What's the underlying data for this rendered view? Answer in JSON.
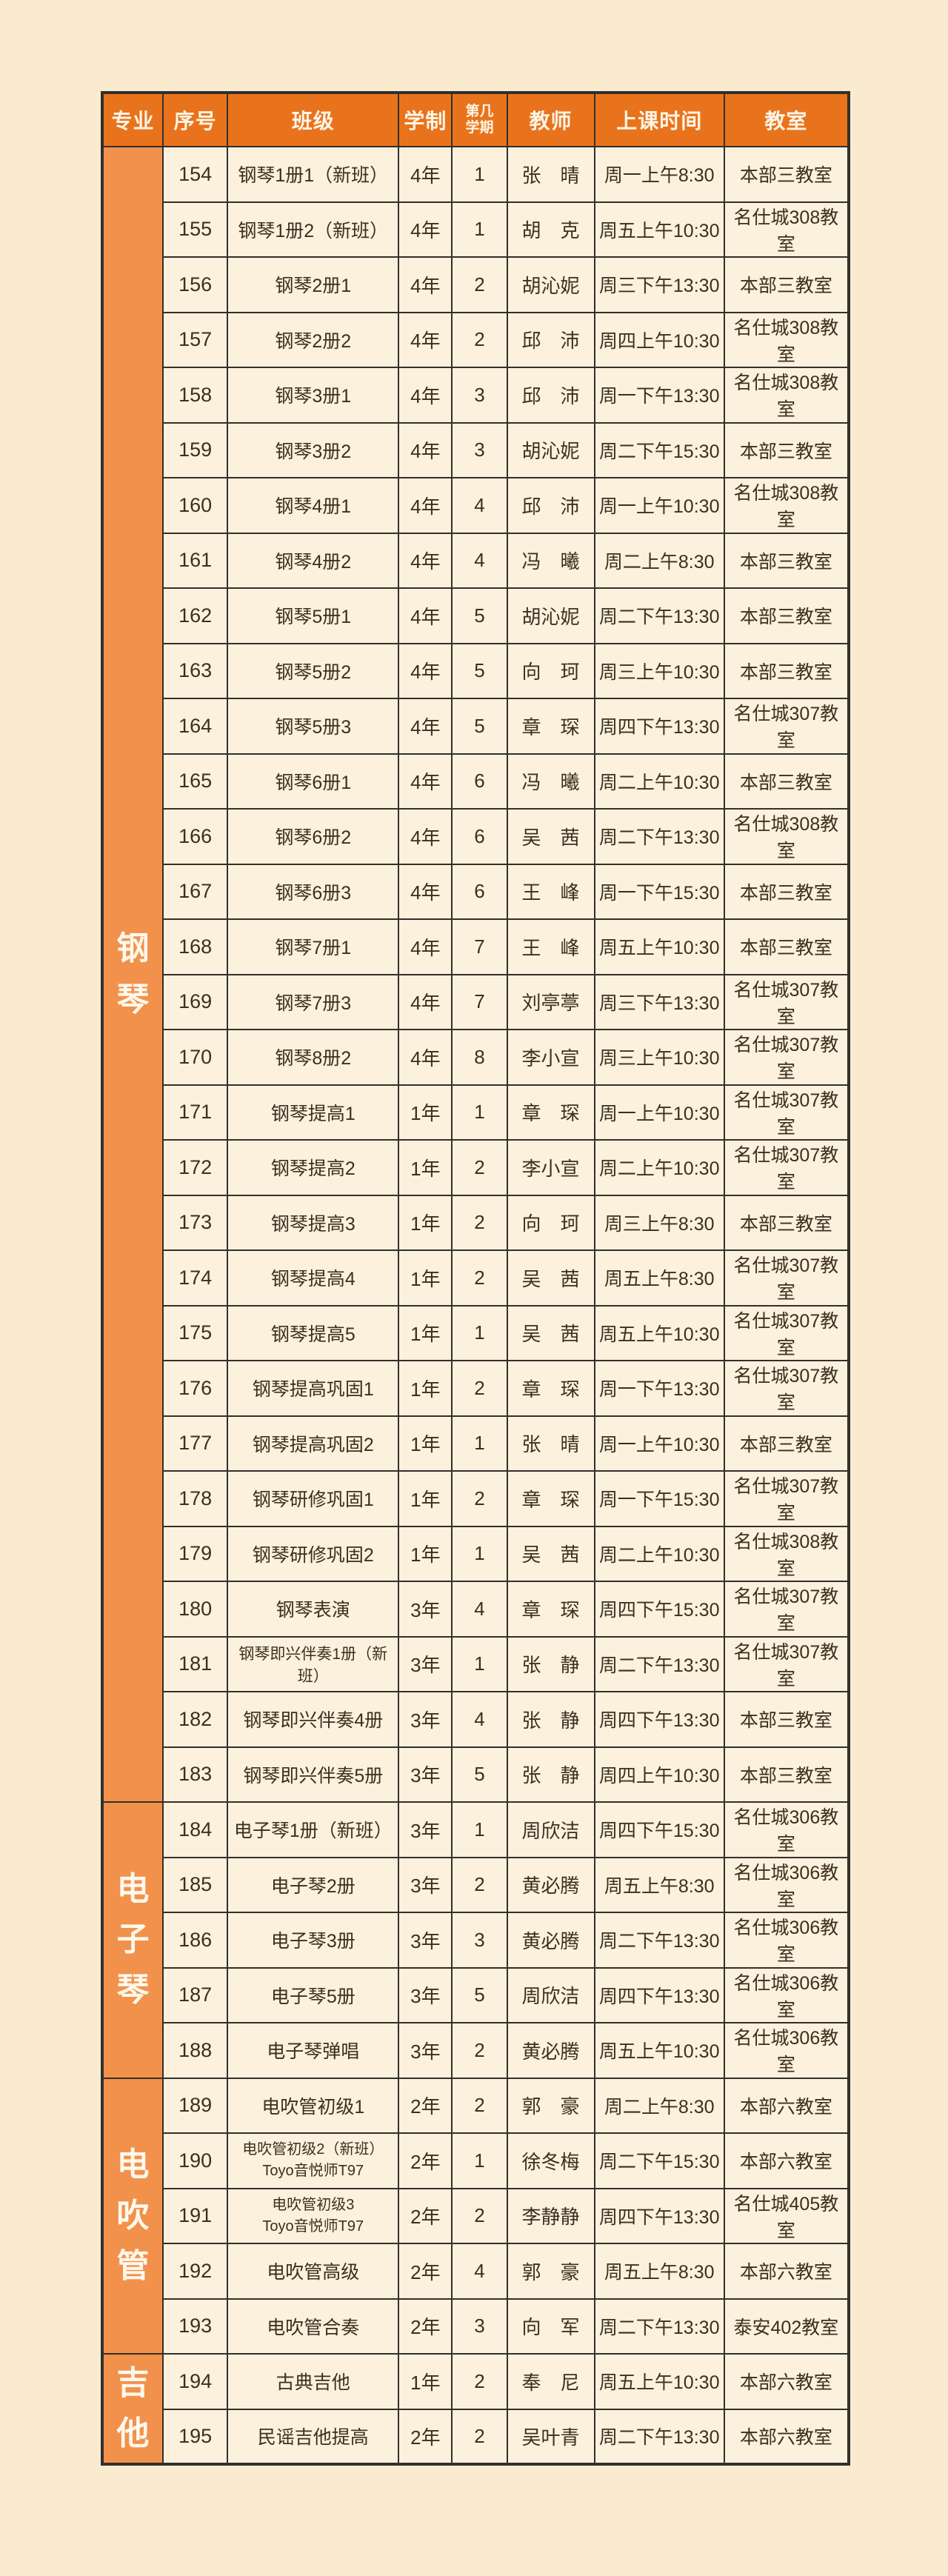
{
  "colors": {
    "page_background": "#FAEBD0",
    "header_background": "#E9731D",
    "section_background": "#F2914C",
    "cell_background": "#FCF1DC",
    "border": "#32302B",
    "body_text": "#3B2F1F",
    "header_text": "#FCF5E6"
  },
  "table": {
    "columns": [
      {
        "key": "major",
        "label": "专业"
      },
      {
        "key": "no",
        "label": "序号"
      },
      {
        "key": "class",
        "label": "班级"
      },
      {
        "key": "duration",
        "label": "学制"
      },
      {
        "key": "semester",
        "label": "第几\n学期"
      },
      {
        "key": "teacher",
        "label": "教师"
      },
      {
        "key": "time",
        "label": "上课时间"
      },
      {
        "key": "room",
        "label": "教室"
      }
    ],
    "sections": [
      {
        "major": "钢琴",
        "rows": [
          [
            "154",
            "钢琴1册1（新班）",
            "4年",
            "1",
            "张　晴",
            "周一上午8:30",
            "本部三教室"
          ],
          [
            "155",
            "钢琴1册2（新班）",
            "4年",
            "1",
            "胡　克",
            "周五上午10:30",
            "名仕城308教室"
          ],
          [
            "156",
            "钢琴2册1",
            "4年",
            "2",
            "胡沁妮",
            "周三下午13:30",
            "本部三教室"
          ],
          [
            "157",
            "钢琴2册2",
            "4年",
            "2",
            "邱　沛",
            "周四上午10:30",
            "名仕城308教室"
          ],
          [
            "158",
            "钢琴3册1",
            "4年",
            "3",
            "邱　沛",
            "周一下午13:30",
            "名仕城308教室"
          ],
          [
            "159",
            "钢琴3册2",
            "4年",
            "3",
            "胡沁妮",
            "周二下午15:30",
            "本部三教室"
          ],
          [
            "160",
            "钢琴4册1",
            "4年",
            "4",
            "邱　沛",
            "周一上午10:30",
            "名仕城308教室"
          ],
          [
            "161",
            "钢琴4册2",
            "4年",
            "4",
            "冯　曦",
            "周二上午8:30",
            "本部三教室"
          ],
          [
            "162",
            "钢琴5册1",
            "4年",
            "5",
            "胡沁妮",
            "周二下午13:30",
            "本部三教室"
          ],
          [
            "163",
            "钢琴5册2",
            "4年",
            "5",
            "向　珂",
            "周三上午10:30",
            "本部三教室"
          ],
          [
            "164",
            "钢琴5册3",
            "4年",
            "5",
            "章　琛",
            "周四下午13:30",
            "名仕城307教室"
          ],
          [
            "165",
            "钢琴6册1",
            "4年",
            "6",
            "冯　曦",
            "周二上午10:30",
            "本部三教室"
          ],
          [
            "166",
            "钢琴6册2",
            "4年",
            "6",
            "吴　茜",
            "周二下午13:30",
            "名仕城308教室"
          ],
          [
            "167",
            "钢琴6册3",
            "4年",
            "6",
            "王　峰",
            "周一下午15:30",
            "本部三教室"
          ],
          [
            "168",
            "钢琴7册1",
            "4年",
            "7",
            "王　峰",
            "周五上午10:30",
            "本部三教室"
          ],
          [
            "169",
            "钢琴7册3",
            "4年",
            "7",
            "刘亭葶",
            "周三下午13:30",
            "名仕城307教室"
          ],
          [
            "170",
            "钢琴8册2",
            "4年",
            "8",
            "李小宣",
            "周三上午10:30",
            "名仕城307教室"
          ],
          [
            "171",
            "钢琴提高1",
            "1年",
            "1",
            "章　琛",
            "周一上午10:30",
            "名仕城307教室"
          ],
          [
            "172",
            "钢琴提高2",
            "1年",
            "2",
            "李小宣",
            "周二上午10:30",
            "名仕城307教室"
          ],
          [
            "173",
            "钢琴提高3",
            "1年",
            "2",
            "向　珂",
            "周三上午8:30",
            "本部三教室"
          ],
          [
            "174",
            "钢琴提高4",
            "1年",
            "2",
            "吴　茜",
            "周五上午8:30",
            "名仕城307教室"
          ],
          [
            "175",
            "钢琴提高5",
            "1年",
            "1",
            "吴　茜",
            "周五上午10:30",
            "名仕城307教室"
          ],
          [
            "176",
            "钢琴提高巩固1",
            "1年",
            "2",
            "章　琛",
            "周一下午13:30",
            "名仕城307教室"
          ],
          [
            "177",
            "钢琴提高巩固2",
            "1年",
            "1",
            "张　晴",
            "周一上午10:30",
            "本部三教室"
          ],
          [
            "178",
            "钢琴研修巩固1",
            "1年",
            "2",
            "章　琛",
            "周一下午15:30",
            "名仕城307教室"
          ],
          [
            "179",
            "钢琴研修巩固2",
            "1年",
            "1",
            "吴　茜",
            "周二上午10:30",
            "名仕城308教室"
          ],
          [
            "180",
            "钢琴表演",
            "3年",
            "4",
            "章　琛",
            "周四下午15:30",
            "名仕城307教室"
          ],
          [
            "181",
            "钢琴即兴伴奏1册（新班）",
            "3年",
            "1",
            "张　静",
            "周二下午13:30",
            "名仕城307教室"
          ],
          [
            "182",
            "钢琴即兴伴奏4册",
            "3年",
            "4",
            "张　静",
            "周四下午13:30",
            "本部三教室"
          ],
          [
            "183",
            "钢琴即兴伴奏5册",
            "3年",
            "5",
            "张　静",
            "周四上午10:30",
            "本部三教室"
          ]
        ]
      },
      {
        "major": "电子琴",
        "rows": [
          [
            "184",
            "电子琴1册（新班）",
            "3年",
            "1",
            "周欣洁",
            "周四下午15:30",
            "名仕城306教室"
          ],
          [
            "185",
            "电子琴2册",
            "3年",
            "2",
            "黄必腾",
            "周五上午8:30",
            "名仕城306教室"
          ],
          [
            "186",
            "电子琴3册",
            "3年",
            "3",
            "黄必腾",
            "周二下午13:30",
            "名仕城306教室"
          ],
          [
            "187",
            "电子琴5册",
            "3年",
            "5",
            "周欣洁",
            "周四下午13:30",
            "名仕城306教室"
          ],
          [
            "188",
            "电子琴弹唱",
            "3年",
            "2",
            "黄必腾",
            "周五上午10:30",
            "名仕城306教室"
          ]
        ]
      },
      {
        "major": "电吹管",
        "rows": [
          [
            "189",
            "电吹管初级1",
            "2年",
            "2",
            "郭　豪",
            "周二上午8:30",
            "本部六教室"
          ],
          [
            "190",
            "电吹管初级2（新班）\nToyo音悦师T97",
            "2年",
            "1",
            "徐冬梅",
            "周二下午15:30",
            "本部六教室"
          ],
          [
            "191",
            "电吹管初级3\nToyo音悦师T97",
            "2年",
            "2",
            "李静静",
            "周四下午13:30",
            "名仕城405教室"
          ],
          [
            "192",
            "电吹管高级",
            "2年",
            "4",
            "郭　豪",
            "周五上午8:30",
            "本部六教室"
          ],
          [
            "193",
            "电吹管合奏",
            "2年",
            "3",
            "向　军",
            "周二下午13:30",
            "泰安402教室"
          ]
        ]
      },
      {
        "major": "吉他",
        "rows": [
          [
            "194",
            "古典吉他",
            "1年",
            "2",
            "奉　尼",
            "周五上午10:30",
            "本部六教室"
          ],
          [
            "195",
            "民谣吉他提高",
            "2年",
            "2",
            "吴叶青",
            "周二下午13:30",
            "本部六教室"
          ]
        ]
      }
    ]
  }
}
